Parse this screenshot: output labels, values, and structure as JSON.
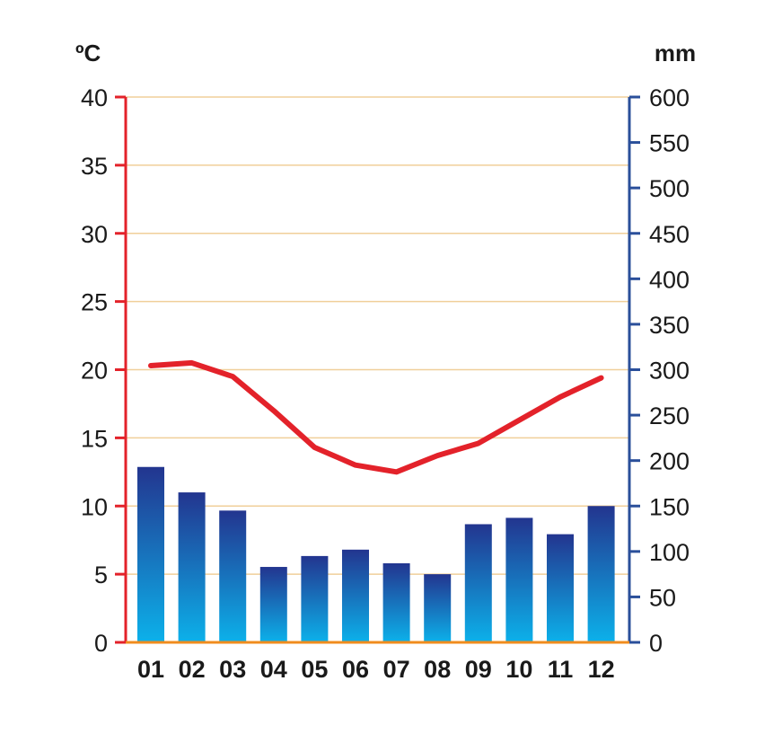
{
  "chart_data": {
    "type": "bar+line",
    "title": "",
    "categories": [
      "01",
      "02",
      "03",
      "04",
      "05",
      "06",
      "07",
      "08",
      "09",
      "10",
      "11",
      "12"
    ],
    "series": [
      {
        "type": "bar",
        "axis": "right",
        "values": [
          193,
          165,
          145,
          83,
          95,
          102,
          87,
          75,
          130,
          137,
          119,
          150
        ]
      },
      {
        "type": "line",
        "axis": "left",
        "values": [
          20.3,
          20.5,
          19.5,
          17.0,
          14.3,
          13.0,
          12.5,
          13.7,
          14.6,
          16.3,
          18.0,
          19.4
        ]
      }
    ],
    "y_left": {
      "label": "ºC",
      "ticks": [
        0,
        5,
        10,
        15,
        20,
        25,
        30,
        35,
        40
      ],
      "lim": [
        0,
        40
      ]
    },
    "y_right": {
      "label": "mm",
      "ticks": [
        0,
        50,
        100,
        150,
        200,
        250,
        300,
        350,
        400,
        450,
        500,
        550,
        600
      ],
      "lim": [
        0,
        600
      ]
    },
    "grid": true,
    "colors": {
      "bar_top": "#23358f",
      "bar_bottom": "#0cb1ea",
      "line": "#e3222a",
      "left_axis": "#e3222a",
      "right_axis": "#2a4f9a",
      "baseline": "#f08c1e",
      "grid": "#f0cf9a"
    }
  }
}
